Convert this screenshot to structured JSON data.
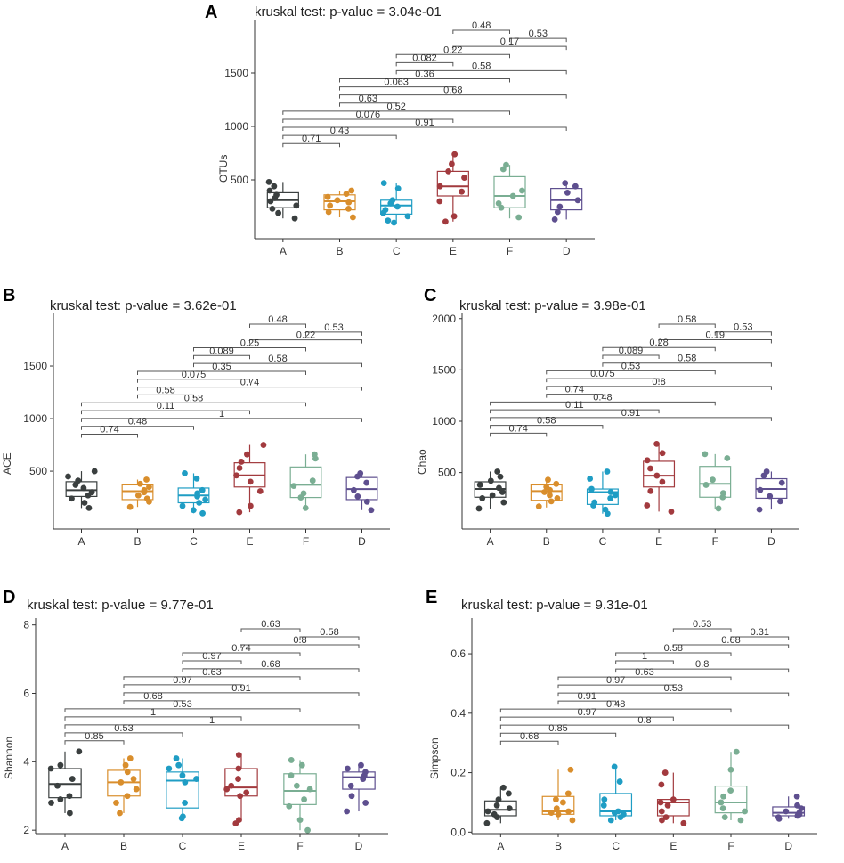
{
  "colors": {
    "A": "#3a3f3f",
    "B": "#d98e2c",
    "C": "#1f9dc4",
    "E": "#a23a3e",
    "F": "#7aae93",
    "D": "#5e4f8f"
  },
  "chart_data": [
    {
      "id": "A",
      "type": "box",
      "letter": "A",
      "title": "kruskal test: p-value = 3.04e-01",
      "ylabel": "OTUs",
      "categories": [
        "A",
        "B",
        "C",
        "E",
        "F",
        "D"
      ],
      "yticks": [
        500,
        1000,
        1500
      ],
      "ylim": [
        -50,
        2000
      ],
      "boxes": [
        {
          "q1": 240,
          "median": 310,
          "q3": 380,
          "lo": 140,
          "hi": 480
        },
        {
          "q1": 220,
          "median": 300,
          "q3": 360,
          "lo": 150,
          "hi": 400
        },
        {
          "q1": 180,
          "median": 260,
          "q3": 310,
          "lo": 100,
          "hi": 470
        },
        {
          "q1": 350,
          "median": 440,
          "q3": 580,
          "lo": 110,
          "hi": 740
        },
        {
          "q1": 240,
          "median": 350,
          "q3": 530,
          "lo": 140,
          "hi": 640
        },
        {
          "q1": 220,
          "median": 310,
          "q3": 420,
          "lo": 130,
          "hi": 470
        }
      ],
      "points": [
        [
          480,
          440,
          400,
          360,
          330,
          300,
          260,
          230,
          190,
          140
        ],
        [
          400,
          370,
          340,
          310,
          290,
          260,
          230,
          200,
          150
        ],
        [
          470,
          420,
          310,
          280,
          250,
          220,
          190,
          160,
          120,
          100
        ],
        [
          740,
          650,
          580,
          520,
          440,
          390,
          300,
          160,
          110
        ],
        [
          640,
          600,
          400,
          350,
          280,
          240,
          150
        ],
        [
          470,
          440,
          380,
          310,
          250,
          200,
          130
        ]
      ],
      "comparisons": [
        {
          "a": "E",
          "b": "F",
          "label": "0.48"
        },
        {
          "a": "F",
          "b": "D",
          "label": "0.53"
        },
        {
          "a": "E",
          "b": "D",
          "label": "0.17"
        },
        {
          "a": "C",
          "b": "F",
          "label": "0.22"
        },
        {
          "a": "C",
          "b": "E",
          "label": "0.082"
        },
        {
          "a": "C",
          "b": "D",
          "label": "0.58"
        },
        {
          "a": "B",
          "b": "F",
          "label": "0.36"
        },
        {
          "a": "B",
          "b": "E",
          "label": "0.063"
        },
        {
          "a": "B",
          "b": "D",
          "label": "0.68"
        },
        {
          "a": "B",
          "b": "C",
          "label": "0.63"
        },
        {
          "a": "A",
          "b": "F",
          "label": "0.52"
        },
        {
          "a": "A",
          "b": "E",
          "label": "0.076"
        },
        {
          "a": "A",
          "b": "D",
          "label": "0.91"
        },
        {
          "a": "A",
          "b": "C",
          "label": "0.43"
        },
        {
          "a": "A",
          "b": "B",
          "label": "0.71"
        }
      ]
    },
    {
      "id": "B",
      "type": "box",
      "letter": "B",
      "title": "kruskal test: p-value = 3.62e-01",
      "ylabel": "ACE",
      "categories": [
        "A",
        "B",
        "C",
        "E",
        "F",
        "D"
      ],
      "yticks": [
        500,
        1000,
        1500
      ],
      "ylim": [
        -50,
        2000
      ],
      "boxes": [
        {
          "q1": 260,
          "median": 320,
          "q3": 400,
          "lo": 150,
          "hi": 500
        },
        {
          "q1": 230,
          "median": 310,
          "q3": 370,
          "lo": 160,
          "hi": 420
        },
        {
          "q1": 200,
          "median": 270,
          "q3": 340,
          "lo": 100,
          "hi": 480
        },
        {
          "q1": 350,
          "median": 460,
          "q3": 580,
          "lo": 110,
          "hi": 750
        },
        {
          "q1": 250,
          "median": 370,
          "q3": 540,
          "lo": 150,
          "hi": 660
        },
        {
          "q1": 230,
          "median": 330,
          "q3": 440,
          "lo": 130,
          "hi": 480
        }
      ],
      "points": [
        [
          500,
          450,
          410,
          370,
          340,
          300,
          270,
          240,
          200,
          150
        ],
        [
          420,
          380,
          350,
          320,
          300,
          270,
          240,
          210,
          160
        ],
        [
          480,
          430,
          320,
          290,
          260,
          230,
          200,
          170,
          130,
          100
        ],
        [
          750,
          660,
          590,
          530,
          460,
          400,
          310,
          170,
          110
        ],
        [
          660,
          620,
          410,
          360,
          290,
          250,
          150
        ],
        [
          480,
          450,
          390,
          320,
          260,
          210,
          130
        ]
      ],
      "comparisons": [
        {
          "a": "E",
          "b": "F",
          "label": "0.48"
        },
        {
          "a": "F",
          "b": "D",
          "label": "0.53"
        },
        {
          "a": "E",
          "b": "D",
          "label": "0.22"
        },
        {
          "a": "C",
          "b": "F",
          "label": "0.25"
        },
        {
          "a": "C",
          "b": "E",
          "label": "0.089"
        },
        {
          "a": "C",
          "b": "D",
          "label": "0.58"
        },
        {
          "a": "B",
          "b": "F",
          "label": "0.35"
        },
        {
          "a": "B",
          "b": "E",
          "label": "0.075"
        },
        {
          "a": "B",
          "b": "D",
          "label": "0.74"
        },
        {
          "a": "B",
          "b": "C",
          "label": "0.58"
        },
        {
          "a": "A",
          "b": "F",
          "label": "0.58"
        },
        {
          "a": "A",
          "b": "E",
          "label": "0.11"
        },
        {
          "a": "A",
          "b": "D",
          "label": "1"
        },
        {
          "a": "A",
          "b": "C",
          "label": "0.48"
        },
        {
          "a": "A",
          "b": "B",
          "label": "0.74"
        }
      ]
    },
    {
      "id": "C",
      "type": "box",
      "letter": "C",
      "title": "kruskal test: p-value = 3.98e-01",
      "ylabel": "Chao",
      "categories": [
        "A",
        "B",
        "C",
        "E",
        "F",
        "D"
      ],
      "yticks": [
        500,
        1000,
        1500,
        2000
      ],
      "ylim": [
        -50,
        2050
      ],
      "boxes": [
        {
          "q1": 260,
          "median": 340,
          "q3": 410,
          "lo": 150,
          "hi": 510
        },
        {
          "q1": 230,
          "median": 320,
          "q3": 380,
          "lo": 160,
          "hi": 430
        },
        {
          "q1": 190,
          "median": 310,
          "q3": 340,
          "lo": 100,
          "hi": 510
        },
        {
          "q1": 360,
          "median": 470,
          "q3": 610,
          "lo": 120,
          "hi": 780
        },
        {
          "q1": 260,
          "median": 390,
          "q3": 560,
          "lo": 150,
          "hi": 680
        },
        {
          "q1": 250,
          "median": 340,
          "q3": 440,
          "lo": 140,
          "hi": 510
        }
      ],
      "points": [
        [
          510,
          460,
          420,
          380,
          350,
          310,
          280,
          250,
          210,
          150
        ],
        [
          430,
          390,
          360,
          330,
          310,
          280,
          250,
          220,
          170
        ],
        [
          510,
          440,
          340,
          310,
          280,
          250,
          210,
          180,
          140,
          100
        ],
        [
          780,
          690,
          620,
          540,
          470,
          410,
          320,
          180,
          120
        ],
        [
          680,
          640,
          430,
          380,
          300,
          260,
          150
        ],
        [
          510,
          470,
          400,
          330,
          270,
          220,
          140
        ]
      ],
      "comparisons": [
        {
          "a": "E",
          "b": "F",
          "label": "0.58"
        },
        {
          "a": "F",
          "b": "D",
          "label": "0.53"
        },
        {
          "a": "E",
          "b": "D",
          "label": "0.19"
        },
        {
          "a": "C",
          "b": "F",
          "label": "0.28"
        },
        {
          "a": "C",
          "b": "E",
          "label": "0.089"
        },
        {
          "a": "C",
          "b": "D",
          "label": "0.58"
        },
        {
          "a": "B",
          "b": "F",
          "label": "0.53"
        },
        {
          "a": "B",
          "b": "E",
          "label": "0.075"
        },
        {
          "a": "B",
          "b": "D",
          "label": "0.8"
        },
        {
          "a": "B",
          "b": "C",
          "label": "0.74"
        },
        {
          "a": "A",
          "b": "F",
          "label": "0.48"
        },
        {
          "a": "A",
          "b": "E",
          "label": "0.11"
        },
        {
          "a": "A",
          "b": "D",
          "label": "0.91"
        },
        {
          "a": "A",
          "b": "C",
          "label": "0.58"
        },
        {
          "a": "A",
          "b": "B",
          "label": "0.74"
        }
      ]
    },
    {
      "id": "D",
      "type": "box",
      "letter": "D",
      "title": "kruskal test: p-value = 9.77e-01",
      "ylabel": "Shannon",
      "categories": [
        "A",
        "B",
        "C",
        "E",
        "F",
        "D"
      ],
      "yticks": [
        2,
        4,
        6,
        8
      ],
      "ylim": [
        1.9,
        8.2
      ],
      "boxes": [
        {
          "q1": 2.95,
          "median": 3.35,
          "q3": 3.8,
          "lo": 2.5,
          "hi": 4.3
        },
        {
          "q1": 3.0,
          "median": 3.4,
          "q3": 3.75,
          "lo": 2.5,
          "hi": 4.1
        },
        {
          "q1": 2.65,
          "median": 3.45,
          "q3": 3.7,
          "lo": 2.4,
          "hi": 4.1
        },
        {
          "q1": 3.0,
          "median": 3.25,
          "q3": 3.8,
          "lo": 2.25,
          "hi": 4.2
        },
        {
          "q1": 2.75,
          "median": 3.15,
          "q3": 3.65,
          "lo": 2.0,
          "hi": 4.05
        },
        {
          "q1": 3.2,
          "median": 3.55,
          "q3": 3.7,
          "lo": 2.55,
          "hi": 3.9
        }
      ],
      "points": [
        [
          4.3,
          3.9,
          3.8,
          3.5,
          3.3,
          3.0,
          2.9,
          2.8,
          2.5
        ],
        [
          4.1,
          3.9,
          3.7,
          3.5,
          3.4,
          3.2,
          3.0,
          2.8,
          2.5
        ],
        [
          4.1,
          3.9,
          3.8,
          3.6,
          3.5,
          3.4,
          2.8,
          2.4,
          2.35
        ],
        [
          4.2,
          3.8,
          3.5,
          3.3,
          3.2,
          3.1,
          3.0,
          2.3,
          2.2
        ],
        [
          4.05,
          3.9,
          3.6,
          3.3,
          3.2,
          2.9,
          2.7,
          2.3,
          2.0
        ],
        [
          3.9,
          3.8,
          3.7,
          3.6,
          3.5,
          3.3,
          3.0,
          2.8,
          2.55
        ]
      ],
      "comparisons": [
        {
          "a": "E",
          "b": "F",
          "label": "0.63"
        },
        {
          "a": "F",
          "b": "D",
          "label": "0.58"
        },
        {
          "a": "E",
          "b": "D",
          "label": "0.8"
        },
        {
          "a": "C",
          "b": "F",
          "label": "0.74"
        },
        {
          "a": "C",
          "b": "E",
          "label": "0.97"
        },
        {
          "a": "C",
          "b": "D",
          "label": "0.68"
        },
        {
          "a": "B",
          "b": "F",
          "label": "0.63"
        },
        {
          "a": "B",
          "b": "E",
          "label": "0.97"
        },
        {
          "a": "B",
          "b": "D",
          "label": "0.91"
        },
        {
          "a": "B",
          "b": "C",
          "label": "0.68"
        },
        {
          "a": "A",
          "b": "F",
          "label": "0.53"
        },
        {
          "a": "A",
          "b": "E",
          "label": "1"
        },
        {
          "a": "A",
          "b": "D",
          "label": "1"
        },
        {
          "a": "A",
          "b": "C",
          "label": "0.53"
        },
        {
          "a": "A",
          "b": "B",
          "label": "0.85"
        }
      ]
    },
    {
      "id": "E",
      "type": "box",
      "letter": "E",
      "title": "kruskal test: p-value = 9.31e-01",
      "ylabel": "Simpson",
      "categories": [
        "A",
        "B",
        "C",
        "E",
        "F",
        "D"
      ],
      "yticks": [
        0.0,
        0.2,
        0.4,
        0.6
      ],
      "ylim": [
        -0.005,
        0.72
      ],
      "ytickfmt": 1,
      "boxes": [
        {
          "q1": 0.055,
          "median": 0.075,
          "q3": 0.105,
          "lo": 0.03,
          "hi": 0.15
        },
        {
          "q1": 0.06,
          "median": 0.07,
          "q3": 0.12,
          "lo": 0.04,
          "hi": 0.21
        },
        {
          "q1": 0.055,
          "median": 0.07,
          "q3": 0.13,
          "lo": 0.04,
          "hi": 0.22
        },
        {
          "q1": 0.055,
          "median": 0.1,
          "q3": 0.11,
          "lo": 0.03,
          "hi": 0.2
        },
        {
          "q1": 0.065,
          "median": 0.1,
          "q3": 0.155,
          "lo": 0.04,
          "hi": 0.27
        },
        {
          "q1": 0.055,
          "median": 0.065,
          "q3": 0.085,
          "lo": 0.045,
          "hi": 0.12
        }
      ],
      "points": [
        [
          0.15,
          0.13,
          0.11,
          0.09,
          0.08,
          0.07,
          0.06,
          0.05,
          0.03
        ],
        [
          0.21,
          0.13,
          0.11,
          0.1,
          0.08,
          0.07,
          0.065,
          0.06,
          0.04
        ],
        [
          0.22,
          0.17,
          0.11,
          0.09,
          0.07,
          0.065,
          0.06,
          0.05,
          0.04
        ],
        [
          0.2,
          0.16,
          0.11,
          0.1,
          0.09,
          0.07,
          0.05,
          0.04,
          0.03
        ],
        [
          0.27,
          0.21,
          0.14,
          0.12,
          0.1,
          0.08,
          0.07,
          0.05,
          0.04
        ],
        [
          0.12,
          0.09,
          0.08,
          0.07,
          0.065,
          0.06,
          0.055,
          0.05,
          0.045
        ]
      ],
      "comparisons": [
        {
          "a": "E",
          "b": "F",
          "label": "0.53"
        },
        {
          "a": "F",
          "b": "D",
          "label": "0.31"
        },
        {
          "a": "E",
          "b": "D",
          "label": "0.68"
        },
        {
          "a": "C",
          "b": "F",
          "label": "0.58"
        },
        {
          "a": "C",
          "b": "E",
          "label": "1"
        },
        {
          "a": "C",
          "b": "D",
          "label": "0.8"
        },
        {
          "a": "B",
          "b": "F",
          "label": "0.63"
        },
        {
          "a": "B",
          "b": "E",
          "label": "0.97"
        },
        {
          "a": "B",
          "b": "D",
          "label": "0.53"
        },
        {
          "a": "B",
          "b": "C",
          "label": "0.91"
        },
        {
          "a": "A",
          "b": "F",
          "label": "0.48"
        },
        {
          "a": "A",
          "b": "E",
          "label": "0.97"
        },
        {
          "a": "A",
          "b": "D",
          "label": "0.8"
        },
        {
          "a": "A",
          "b": "C",
          "label": "0.85"
        },
        {
          "a": "A",
          "b": "B",
          "label": "0.68"
        }
      ]
    }
  ]
}
